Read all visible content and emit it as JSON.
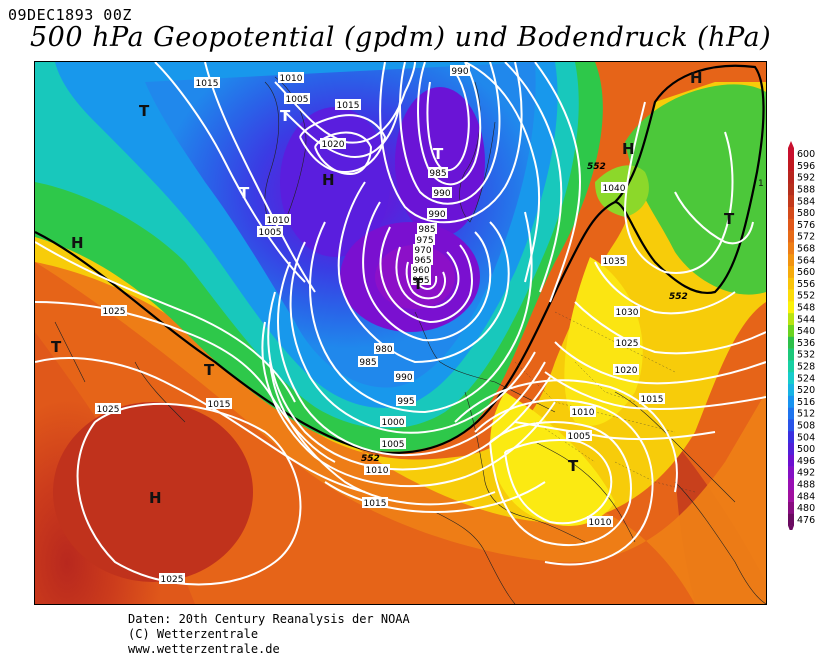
{
  "header": {
    "date": "09DEC1893 00Z",
    "title": "500 hPa Geopotential (gpdm) und Bodendruck (hPa)"
  },
  "legend": {
    "values": [
      "600",
      "596",
      "592",
      "588",
      "584",
      "580",
      "576",
      "572",
      "568",
      "564",
      "560",
      "556",
      "552",
      "548",
      "544",
      "540",
      "536",
      "532",
      "528",
      "524",
      "520",
      "516",
      "512",
      "508",
      "504",
      "500",
      "496",
      "492",
      "488",
      "484",
      "480",
      "476"
    ],
    "colors": [
      "#c8102e",
      "#c01a20",
      "#b8251e",
      "#b52f1d",
      "#c33a1c",
      "#d44a1b",
      "#e0581a",
      "#e66a18",
      "#ee7e16",
      "#f29410",
      "#f6ab0c",
      "#f9c40a",
      "#fcdc0a",
      "#fbf20c",
      "#b8e412",
      "#6cd420",
      "#2ec04a",
      "#1cc87a",
      "#18d0a4",
      "#18cccc",
      "#18b4e4",
      "#1894f0",
      "#1e74ee",
      "#2a54e8",
      "#3a30e0",
      "#5020d8",
      "#6c10d0",
      "#8410c4",
      "#9810b4",
      "#a010a0",
      "#880c80",
      "#6a0a60"
    ]
  },
  "map": {
    "pressure_labels": [
      {
        "id": "p1015a",
        "text": "1015"
      },
      {
        "id": "p1010a",
        "text": "1010"
      },
      {
        "id": "p1005a",
        "text": "1005"
      },
      {
        "id": "p1015b",
        "text": "1015"
      },
      {
        "id": "p990a",
        "text": "990"
      },
      {
        "id": "p1020a",
        "text": "1020"
      },
      {
        "id": "p985a",
        "text": "985"
      },
      {
        "id": "p990b",
        "text": "990"
      },
      {
        "id": "p1010b",
        "text": "1010"
      },
      {
        "id": "p1005b",
        "text": "1005"
      },
      {
        "id": "p990c",
        "text": "990"
      },
      {
        "id": "p985b",
        "text": "985"
      },
      {
        "id": "p975",
        "text": "975"
      },
      {
        "id": "p970",
        "text": "970"
      },
      {
        "id": "p965",
        "text": "965"
      },
      {
        "id": "p960",
        "text": "960"
      },
      {
        "id": "p955",
        "text": "955"
      },
      {
        "id": "p980",
        "text": "980"
      },
      {
        "id": "p985c",
        "text": "985"
      },
      {
        "id": "p990d",
        "text": "990"
      },
      {
        "id": "p995",
        "text": "995"
      },
      {
        "id": "p1000",
        "text": "1000"
      },
      {
        "id": "p1005c",
        "text": "1005"
      },
      {
        "id": "p1010c",
        "text": "1010"
      },
      {
        "id": "p1015c",
        "text": "1015"
      },
      {
        "id": "p1025a",
        "text": "1025"
      },
      {
        "id": "p1015d",
        "text": "1015"
      },
      {
        "id": "p1025b",
        "text": "1025"
      },
      {
        "id": "p1025c",
        "text": "1025"
      },
      {
        "id": "p1040",
        "text": "1040"
      },
      {
        "id": "p1035",
        "text": "1035"
      },
      {
        "id": "p1030",
        "text": "1030"
      },
      {
        "id": "p1025d",
        "text": "1025"
      },
      {
        "id": "p1020b",
        "text": "1020"
      },
      {
        "id": "p1015e",
        "text": "1015"
      },
      {
        "id": "p1010d",
        "text": "1010"
      },
      {
        "id": "p1005d",
        "text": "1005"
      },
      {
        "id": "p1010e",
        "text": "1010"
      }
    ],
    "contour_labels": [
      {
        "id": "c552a",
        "text": "552"
      },
      {
        "id": "c552b",
        "text": "552"
      },
      {
        "id": "c552c",
        "text": "552"
      }
    ],
    "centers": [
      {
        "id": "T1",
        "text": "T"
      },
      {
        "id": "T2",
        "text": "T"
      },
      {
        "id": "T3",
        "text": "T"
      },
      {
        "id": "H1",
        "text": "H"
      },
      {
        "id": "T4",
        "text": "T"
      },
      {
        "id": "T5",
        "text": "T"
      },
      {
        "id": "H2",
        "text": "H"
      },
      {
        "id": "T6",
        "text": "T"
      },
      {
        "id": "T7",
        "text": "T"
      },
      {
        "id": "H3",
        "text": "H"
      },
      {
        "id": "H4",
        "text": "H"
      },
      {
        "id": "H5",
        "text": "H"
      },
      {
        "id": "T8",
        "text": "T"
      },
      {
        "id": "T9",
        "text": "T"
      }
    ],
    "edge_mark": "1"
  },
  "credits": {
    "line1": "Daten: 20th Century Reanalysis der NOAA",
    "line2": "(C) Wetterzentrale",
    "line3": "www.wetterzentrale.de"
  }
}
